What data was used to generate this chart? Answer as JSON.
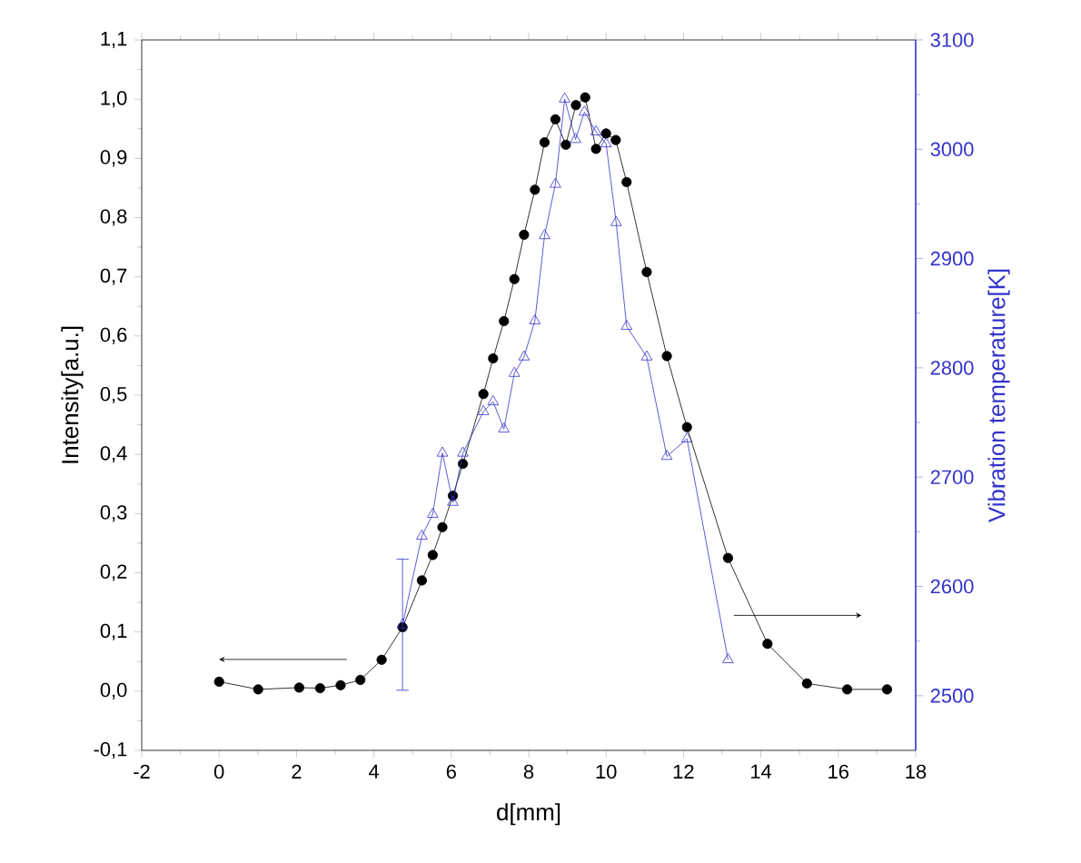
{
  "chart_data": {
    "type": "line",
    "xlabel": "d[mm]",
    "ylabel": "Intensity[a.u.]",
    "y2label": "Vibration temperature[K]",
    "xlim": [
      -2,
      18
    ],
    "xticks": [
      -2,
      0,
      2,
      4,
      6,
      8,
      10,
      12,
      14,
      16,
      18
    ],
    "ylim": [
      -0.1,
      1.1
    ],
    "yticks": [
      {
        "value": -0.1,
        "label": "-0,1"
      },
      {
        "value": 0.0,
        "label": "0,0"
      },
      {
        "value": 0.1,
        "label": "0,1"
      },
      {
        "value": 0.2,
        "label": "0,2"
      },
      {
        "value": 0.3,
        "label": "0,3"
      },
      {
        "value": 0.4,
        "label": "0,4"
      },
      {
        "value": 0.5,
        "label": "0,5"
      },
      {
        "value": 0.6,
        "label": "0,6"
      },
      {
        "value": 0.7,
        "label": "0,7"
      },
      {
        "value": 0.8,
        "label": "0,8"
      },
      {
        "value": 0.9,
        "label": "0,9"
      },
      {
        "value": 1.0,
        "label": "1,0"
      },
      {
        "value": 1.1,
        "label": "1,1"
      }
    ],
    "y2lim": [
      2450,
      3100
    ],
    "y2ticks": [
      2500,
      2600,
      2700,
      2800,
      2900,
      3000,
      3100
    ],
    "series": [
      {
        "color": "#000000",
        "marker": "circle",
        "x": [
          0,
          1.01,
          2.07,
          2.61,
          3.14,
          3.65,
          4.2,
          4.74,
          5.24,
          5.52,
          5.77,
          6.04,
          6.3,
          6.83,
          7.08,
          7.36,
          7.63,
          7.88,
          8.16,
          8.41,
          8.69,
          8.96,
          9.22,
          9.46,
          9.74,
          10.0,
          10.25,
          10.53,
          11.05,
          11.57,
          12.09,
          13.15,
          14.17,
          15.19,
          16.23,
          17.26
        ],
        "values": [
          0.016,
          0.003,
          0.006,
          0.005,
          0.01,
          0.019,
          0.053,
          0.108,
          0.187,
          0.23,
          0.277,
          0.33,
          0.384,
          0.502,
          0.562,
          0.625,
          0.696,
          0.771,
          0.847,
          0.927,
          0.966,
          0.923,
          0.99,
          1.003,
          0.916,
          0.942,
          0.931,
          0.86,
          0.708,
          0.566,
          0.446,
          0.225,
          0.08,
          0.013,
          0.003,
          0.003
        ]
      },
      {
        "color": "#3333cc",
        "marker": "triangle",
        "axis": "y2",
        "x": [
          4.74,
          5.24,
          5.52,
          5.77,
          6.04,
          6.3,
          6.83,
          7.08,
          7.36,
          7.63,
          7.88,
          8.16,
          8.41,
          8.69,
          8.93,
          9.21,
          9.44,
          9.74,
          10.0,
          10.26,
          10.53,
          11.05,
          11.57,
          12.09,
          13.15
        ],
        "values": [
          2565,
          2646,
          2666,
          2722,
          2677,
          2722,
          2760,
          2769,
          2744,
          2795,
          2810,
          2843,
          2921,
          2968,
          3046,
          3009,
          3034,
          3016,
          3005,
          2933,
          2838,
          2810,
          2719,
          2735,
          2533
        ],
        "errors": [
          [
            2505,
            2625
          ],
          null,
          null,
          null,
          null,
          null,
          null,
          null,
          null,
          null,
          null,
          null,
          null,
          null,
          null,
          null,
          null,
          null,
          null,
          null,
          null,
          null,
          null,
          null,
          null
        ]
      }
    ]
  }
}
